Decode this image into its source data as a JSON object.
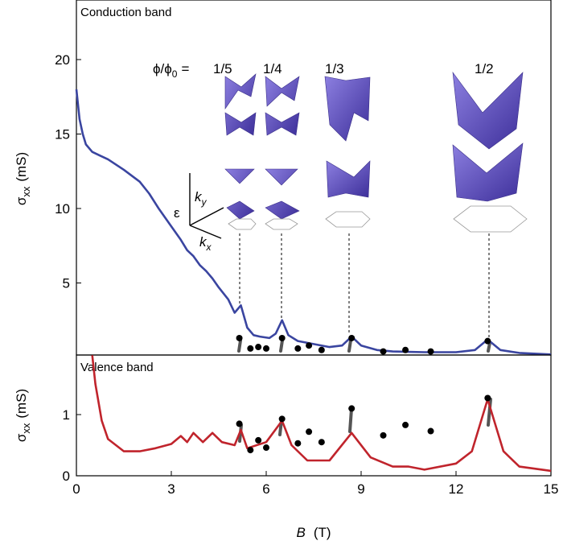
{
  "chart_data": [
    {
      "type": "line",
      "label": "Conduction band",
      "label_color": "#3a45a0",
      "ylabel": {
        "symbol": "σ",
        "subscript": "xx",
        "unit": "(mS)"
      },
      "flux_label": {
        "text": "ϕ/ϕ",
        "subscript": "0",
        "suffix": "="
      },
      "fractions": [
        "1/5",
        "1/4",
        "1/3",
        "1/2"
      ],
      "axis_glyphs": {
        "energy": "ε",
        "ky": "k",
        "ky_sub": "y",
        "kx": "k",
        "kx_sub": "x"
      },
      "xlim": [
        0,
        15
      ],
      "ylim": [
        0,
        24
      ],
      "yticks": [
        5,
        10,
        15,
        20
      ],
      "series": [
        {
          "color": "#3a45a0",
          "x": [
            0,
            0.1,
            0.2,
            0.3,
            0.5,
            0.8,
            1,
            1.5,
            2,
            2.3,
            2.6,
            3,
            3.3,
            3.5,
            3.7,
            3.9,
            4.1,
            4.3,
            4.5,
            4.8,
            5.0,
            5.2,
            5.4,
            5.6,
            5.8,
            6.1,
            6.3,
            6.5,
            6.7,
            7,
            7.5,
            8,
            8.4,
            8.7,
            9,
            9.5,
            10,
            11,
            12,
            12.6,
            13,
            13.4,
            14,
            15
          ],
          "values": [
            18,
            16,
            15,
            14.3,
            13.8,
            13.5,
            13.3,
            12.6,
            11.8,
            11,
            10,
            8.8,
            7.9,
            7.2,
            6.8,
            6.2,
            5.8,
            5.3,
            4.7,
            3.9,
            3.0,
            3.5,
            2.0,
            1.5,
            1.4,
            1.3,
            1.6,
            2.5,
            1.5,
            1.1,
            0.9,
            0.7,
            0.8,
            1.4,
            0.8,
            0.5,
            0.4,
            0.35,
            0.35,
            0.5,
            1.2,
            0.5,
            0.3,
            0.2
          ]
        }
      ],
      "points": {
        "color": "#000",
        "x": [
          5.15,
          5.5,
          5.75,
          6.0,
          6.5,
          7.0,
          7.35,
          7.75,
          8.7,
          9.7,
          10.4,
          11.2,
          13.0
        ],
        "values": [
          1.3,
          0.6,
          0.7,
          0.6,
          1.3,
          0.6,
          0.8,
          0.5,
          1.3,
          0.4,
          0.5,
          0.4,
          1.1
        ]
      }
    },
    {
      "type": "line",
      "label": "Valence band",
      "label_color": "#c0242c",
      "ylabel": {
        "symbol": "σ",
        "subscript": "xx",
        "unit": "(mS)"
      },
      "xlabel": {
        "symbol": "B",
        "unit": "(T)"
      },
      "xlim": [
        0,
        15
      ],
      "xticks": [
        0,
        3,
        6,
        9,
        12,
        15
      ],
      "ylim": [
        0,
        2
      ],
      "yticks": [
        0,
        1
      ],
      "series": [
        {
          "color": "#c0242c",
          "x": [
            0.5,
            0.6,
            0.8,
            1,
            1.5,
            2,
            2.5,
            3,
            3.3,
            3.5,
            3.7,
            4,
            4.3,
            4.6,
            5,
            5.2,
            5.4,
            6,
            6.5,
            6.8,
            7.3,
            8,
            8.7,
            9.3,
            10,
            10.5,
            11,
            12,
            12.5,
            13,
            13.5,
            14,
            15
          ],
          "values": [
            1.97,
            1.5,
            0.9,
            0.6,
            0.4,
            0.4,
            0.45,
            0.52,
            0.65,
            0.55,
            0.7,
            0.55,
            0.7,
            0.55,
            0.5,
            0.75,
            0.45,
            0.55,
            0.9,
            0.5,
            0.25,
            0.25,
            0.7,
            0.3,
            0.15,
            0.15,
            0.1,
            0.2,
            0.4,
            1.25,
            0.4,
            0.15,
            0.08
          ]
        }
      ],
      "points": {
        "color": "#000",
        "x": [
          5.15,
          5.5,
          5.75,
          6.0,
          6.5,
          7.0,
          7.35,
          7.75,
          8.7,
          9.7,
          10.4,
          11.2,
          13.0
        ],
        "values": [
          0.85,
          0.42,
          0.58,
          0.46,
          0.93,
          0.53,
          0.72,
          0.55,
          1.1,
          0.66,
          0.83,
          0.73,
          1.27
        ]
      }
    }
  ]
}
